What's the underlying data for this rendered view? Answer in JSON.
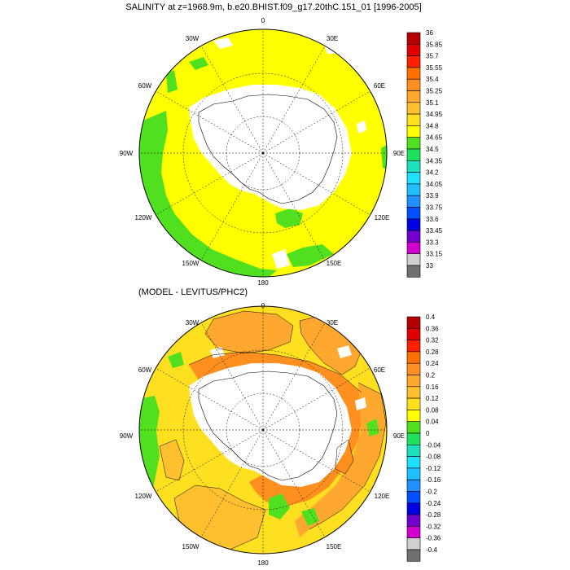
{
  "panels": [
    {
      "id": "top",
      "title": "SALINITY at z=1968.9m, b.e20.BHIST.f09_g17.20thC.151_01 [1996-2005]",
      "lon_labels": [
        "0",
        "30E",
        "60E",
        "90E",
        "120E",
        "150E",
        "180",
        "150W",
        "120W",
        "90W",
        "60W",
        "30W"
      ],
      "colorbar": {
        "labels": [
          "36",
          "35.85",
          "35.7",
          "35.55",
          "35.4",
          "35.25",
          "35.1",
          "34.95",
          "34.8",
          "34.65",
          "34.5",
          "34.35",
          "34.2",
          "34.05",
          "33.9",
          "33.75",
          "33.6",
          "33.45",
          "33.3",
          "33.15",
          "33"
        ],
        "colors": [
          "#b40000",
          "#e00000",
          "#ff2000",
          "#ff7000",
          "#ff9020",
          "#ffa830",
          "#ffc030",
          "#ffe020",
          "#ffff00",
          "#50e020",
          "#20e060",
          "#20e0c0",
          "#20e0ff",
          "#20c0ff",
          "#2090ff",
          "#0050ff",
          "#0000e0",
          "#7000d0",
          "#d000d0",
          "#d0d0d0",
          "#707070"
        ]
      },
      "dominant_value": "34.95",
      "coastal_value": "34.8"
    },
    {
      "id": "bottom",
      "title": "(MODEL - LEVITUS/PHC2)",
      "lon_labels": [
        "0",
        "30E",
        "60E",
        "90E",
        "120E",
        "150E",
        "180",
        "150W",
        "120W",
        "90W",
        "60W",
        "30W"
      ],
      "colorbar": {
        "labels": [
          "0.4",
          "0.36",
          "0.32",
          "0.28",
          "0.24",
          "0.2",
          "0.16",
          "0.12",
          "0.08",
          "0.04",
          "0",
          "-0.04",
          "-0.08",
          "-0.12",
          "-0.16",
          "-0.2",
          "-0.24",
          "-0.28",
          "-0.32",
          "-0.36",
          "-0.4"
        ],
        "colors": [
          "#b40000",
          "#e00000",
          "#ff2000",
          "#ff7000",
          "#ff9020",
          "#ffa830",
          "#ffc030",
          "#ffe020",
          "#ffff00",
          "#50e020",
          "#20e060",
          "#20e0c0",
          "#20e0ff",
          "#20c0ff",
          "#2090ff",
          "#0050ff",
          "#0000e0",
          "#7000d0",
          "#d000d0",
          "#d0d0d0",
          "#707070"
        ]
      }
    }
  ]
}
